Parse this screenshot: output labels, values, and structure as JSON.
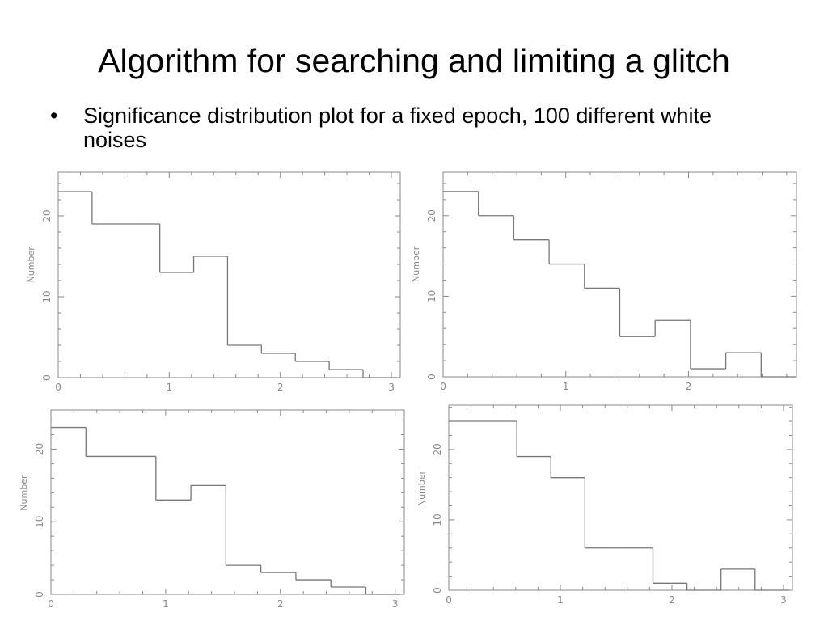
{
  "slide": {
    "title": "Algorithm for searching and limiting a glitch",
    "bullet_icon": "bullet-dot",
    "bullet": "Significance distribution plot for a fixed epoch, 100 different white noises"
  },
  "colors": {
    "line": "#777777",
    "frame": "#8a8a8a",
    "label": "#8a8a8a"
  },
  "chart_data": [
    {
      "type": "bar",
      "style": "step histogram",
      "ylabel": "Number",
      "xlabel": "",
      "bin_edges": [
        0,
        0.305,
        0.61,
        0.915,
        1.22,
        1.525,
        1.83,
        2.135,
        2.44,
        2.745,
        3.05
      ],
      "values": [
        23,
        19,
        19,
        13,
        15,
        4,
        3,
        2,
        1,
        0
      ],
      "xlim": [
        0,
        3.08
      ],
      "ylim": [
        0,
        25.4
      ],
      "xticks": [
        "0",
        "1",
        "2",
        "3"
      ],
      "yticks": [
        "0",
        "10",
        "20"
      ]
    },
    {
      "type": "bar",
      "style": "step histogram",
      "ylabel": "Number",
      "xlabel": "",
      "bin_edges": [
        0,
        0.288,
        0.576,
        0.864,
        1.152,
        1.44,
        1.728,
        2.016,
        2.304,
        2.592,
        2.88
      ],
      "values": [
        23,
        20,
        17,
        14,
        11,
        5,
        7,
        1,
        3,
        0
      ],
      "xlim": [
        0,
        2.88
      ],
      "ylim": [
        0,
        25.4
      ],
      "xticks": [
        "0",
        "1",
        "2"
      ],
      "yticks": [
        "0",
        "10",
        "20"
      ]
    },
    {
      "type": "bar",
      "style": "step histogram",
      "ylabel": "Number",
      "xlabel": "",
      "bin_edges": [
        0,
        0.305,
        0.61,
        0.915,
        1.22,
        1.525,
        1.83,
        2.135,
        2.44,
        2.745,
        3.05
      ],
      "values": [
        23,
        19,
        19,
        13,
        15,
        4,
        3,
        2,
        1,
        0
      ],
      "xlim": [
        0,
        3.08
      ],
      "ylim": [
        0,
        25.4
      ],
      "xticks": [
        "0",
        "1",
        "2",
        "3"
      ],
      "yticks": [
        "0",
        "10",
        "20"
      ]
    },
    {
      "type": "bar",
      "style": "step histogram",
      "ylabel": "Number",
      "xlabel": "",
      "bin_edges": [
        0,
        0.305,
        0.61,
        0.915,
        1.22,
        1.525,
        1.83,
        2.135,
        2.44,
        2.745,
        3.05
      ],
      "values": [
        24,
        24,
        19,
        16,
        6,
        6,
        1,
        0,
        3,
        0
      ],
      "xlim": [
        0,
        3.08
      ],
      "ylim": [
        0,
        26.3
      ],
      "xticks": [
        "0",
        "1",
        "2",
        "3"
      ],
      "yticks": [
        "0",
        "10",
        "20"
      ]
    }
  ]
}
